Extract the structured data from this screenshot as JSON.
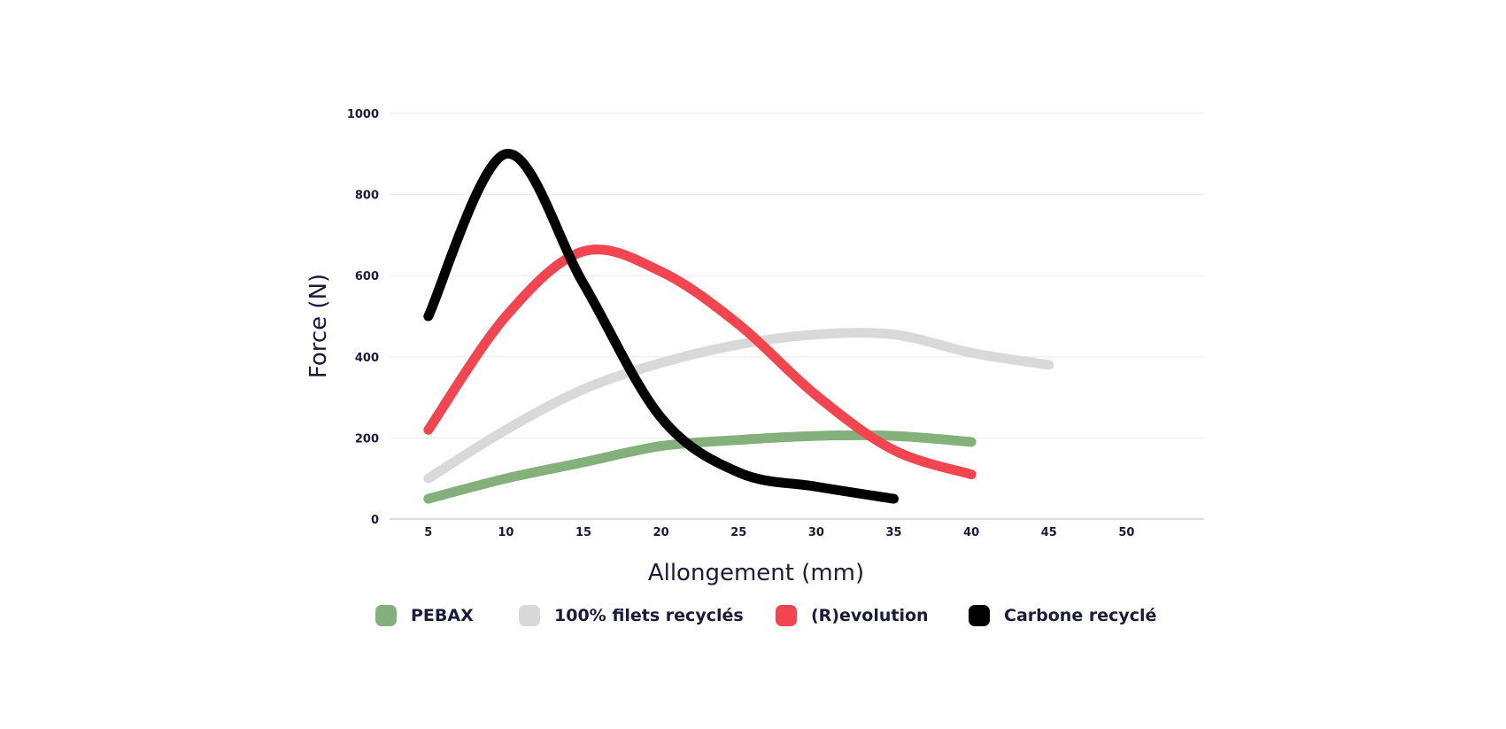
{
  "chart_data": {
    "type": "line",
    "xlabel": "Allongement (mm)",
    "ylabel": "Force (N)",
    "xlim": [
      2.5,
      55
    ],
    "ylim": [
      0,
      1000
    ],
    "x_ticks": [
      "5",
      "10",
      "15",
      "20",
      "25",
      "30",
      "35",
      "40",
      "45",
      "50"
    ],
    "y_ticks": [
      "0",
      "200",
      "400",
      "600",
      "800",
      "1000"
    ],
    "grid": true,
    "legend_position": "bottom",
    "series": [
      {
        "name": "100% filets recyclés",
        "color": "#d9d9d9",
        "x": [
          5,
          10,
          15,
          20,
          25,
          30,
          35,
          40,
          45
        ],
        "y": [
          100,
          220,
          320,
          385,
          430,
          455,
          455,
          410,
          380
        ]
      },
      {
        "name": "PEBAX",
        "color": "#84b07c",
        "x": [
          5,
          10,
          15,
          20,
          25,
          30,
          35,
          40
        ],
        "y": [
          50,
          100,
          140,
          180,
          195,
          205,
          205,
          190
        ]
      },
      {
        "name": "(R)evolution",
        "color": "#f2454f",
        "x": [
          5,
          10,
          15,
          20,
          25,
          30,
          35,
          40
        ],
        "y": [
          220,
          500,
          660,
          610,
          480,
          305,
          170,
          110
        ]
      },
      {
        "name": "Carbone recyclé",
        "color": "#000000",
        "x": [
          5,
          10,
          15,
          20,
          25,
          30,
          35
        ],
        "y": [
          500,
          900,
          580,
          250,
          115,
          80,
          50
        ]
      }
    ],
    "legend": [
      {
        "name": "PEBAX",
        "color": "#84b07c"
      },
      {
        "name": "100% filets recyclés",
        "color": "#d9d9d9"
      },
      {
        "name": "(R)evolution",
        "color": "#f2454f"
      },
      {
        "name": "Carbone recyclé",
        "color": "#000000"
      }
    ]
  }
}
